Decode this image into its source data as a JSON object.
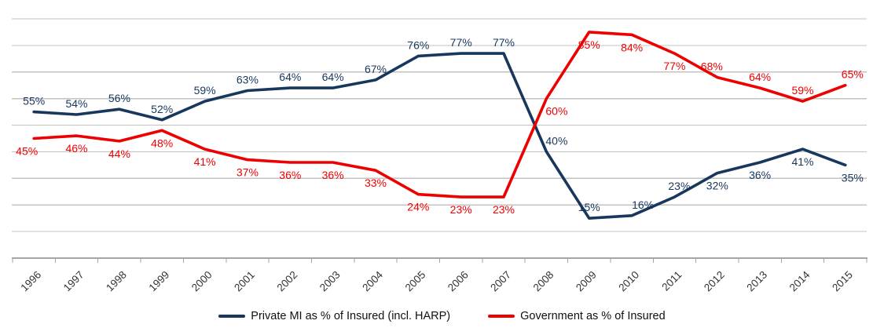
{
  "chart_data": {
    "type": "line",
    "title": "",
    "xlabel": "",
    "ylabel": "",
    "categories": [
      "1996",
      "1997",
      "1998",
      "1999",
      "2000",
      "2001",
      "2002",
      "2003",
      "2004",
      "2005",
      "2006",
      "2007",
      "2008",
      "2009",
      "2010",
      "2011",
      "2012",
      "2013",
      "2014",
      "2015"
    ],
    "series": [
      {
        "name": "Private MI as % of Insured (incl. HARP)",
        "color": "#17375D",
        "values": [
          55,
          54,
          56,
          52,
          59,
          63,
          64,
          64,
          67,
          76,
          77,
          77,
          40,
          15,
          16,
          23,
          32,
          36,
          41,
          35
        ],
        "label_positions": [
          "above",
          "above",
          "above",
          "above",
          "above",
          "above",
          "above",
          "above",
          "above",
          "above",
          "above",
          "above",
          "above",
          "above",
          "above",
          "above",
          "below",
          "below",
          "below",
          "below"
        ],
        "label_dx": [
          0,
          0,
          0,
          0,
          0,
          0,
          0,
          0,
          0,
          0,
          0,
          0,
          13,
          0,
          14,
          6,
          0,
          0,
          0,
          9
        ]
      },
      {
        "name": "Government as % of Insured",
        "color": "#ED0000",
        "values": [
          45,
          46,
          44,
          48,
          41,
          37,
          36,
          36,
          33,
          24,
          23,
          23,
          60,
          85,
          84,
          77,
          68,
          64,
          59,
          65
        ],
        "label_positions": [
          "below",
          "below",
          "below",
          "below",
          "below",
          "below",
          "below",
          "below",
          "below",
          "below",
          "below",
          "below",
          "below",
          "below",
          "below",
          "below",
          "above",
          "above",
          "above",
          "above"
        ],
        "label_dx": [
          -9,
          0,
          0,
          0,
          0,
          0,
          0,
          0,
          0,
          0,
          0,
          0,
          13,
          0,
          0,
          0,
          -7,
          0,
          0,
          9
        ]
      }
    ],
    "data_label_format": "percent",
    "ylim": [
      0,
      90
    ],
    "gridline_step": 10,
    "grid": true,
    "y_axis_labels_visible": false,
    "x_tick_rotation": -45,
    "legend_position": "bottom",
    "colors": {
      "gridline": "#C3C3C3",
      "axis": "#A6A6A6",
      "x_tick_label": "#333333"
    }
  }
}
